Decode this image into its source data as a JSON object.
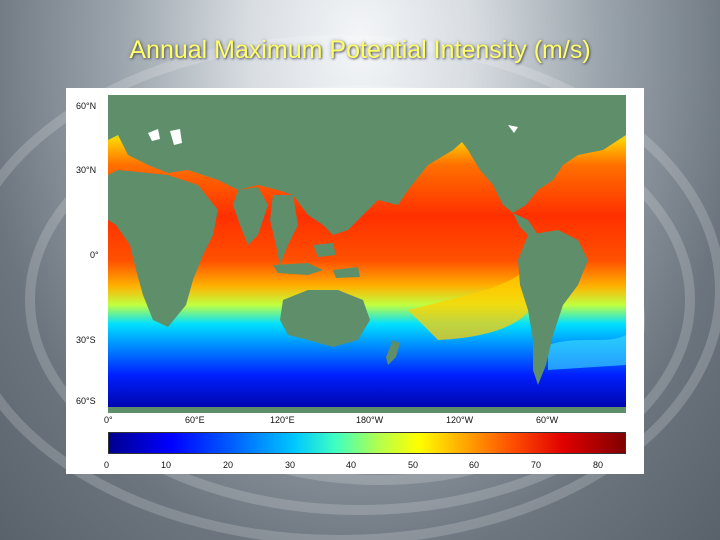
{
  "title": "Annual Maximum Potential Intensity (m/s)",
  "map": {
    "latitude_labels": [
      "60°N",
      "30°N",
      "0°",
      "30°S",
      "60°S"
    ],
    "longitude_labels": [
      "0°",
      "60°E",
      "120°E",
      "180°W",
      "120°W",
      "60°W"
    ]
  },
  "colorbar": {
    "ticks": [
      "0",
      "10",
      "20",
      "30",
      "40",
      "50",
      "60",
      "70",
      "80"
    ]
  },
  "colors": {
    "title": "#ffff66",
    "land": "#5e8f6a",
    "colorbar_stops": [
      "#00008f",
      "#0000ff",
      "#00c8ff",
      "#b0ff50",
      "#ffff00",
      "#ffb000",
      "#ff5000",
      "#800000"
    ]
  }
}
